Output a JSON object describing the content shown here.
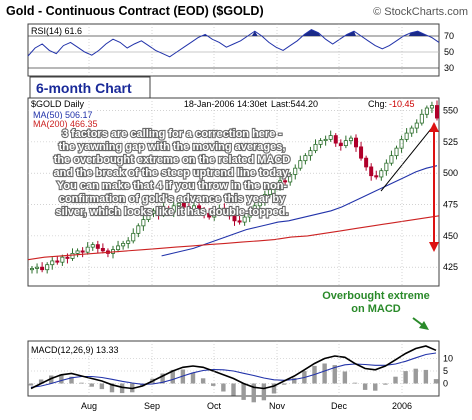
{
  "header": {
    "title": "Gold - Continuous Contract (EOD) ($GOLD)",
    "watermark": "© StockCharts.com"
  },
  "colors": {
    "panel_bg": "#ffffff",
    "frame": "#404040",
    "grid": "#b8b8b8",
    "up_candle": "#2b6e2b",
    "down_candle": "#b0002a",
    "ma50": "#2233aa",
    "ma200": "#cc2222",
    "annotation_text": "#ffffff",
    "annotation_callout": "#2a8a2a",
    "arrow": "#dd1111",
    "macd_line": "#000000",
    "signal_line": "#2233aa",
    "histogram": "#9a9a9a"
  },
  "rsi_panel": {
    "label": "RSI(14) 61.6",
    "levels": [
      "70",
      "50",
      "30"
    ]
  },
  "chart_title_box": "6-month Chart",
  "price_panel": {
    "symbol_label": "$GOLD Daily",
    "date_label": "18-Jan-2006 14:30et",
    "last_label": "Last:544.20",
    "chg_label": "Chg:",
    "chg_value": "-10.45",
    "ma50_label": "MA(50) 506.17",
    "ma200_label": "MA(200) 466.35",
    "y_ticks": [
      "550",
      "525",
      "500",
      "475",
      "450",
      "425"
    ],
    "annotation_lines": [
      "3 factors are calling for a correction here -",
      "the yawning gap with the moving averages,",
      "the overbought extreme on the related MACD",
      "and the break of the steep uptrend line today.",
      "You can make that 4 if you throw in the non-",
      "confirmation of gold's advance this year by",
      "silver, which looks like it has double-topped."
    ]
  },
  "macd_panel": {
    "label": "MACD(12,26,9) 13.33",
    "callout_lines": [
      "Overbought extreme",
      "on MACD"
    ],
    "y_ticks": [
      "10",
      "5",
      "0"
    ]
  },
  "x_axis": {
    "labels": [
      "Aug",
      "Sep",
      "Oct",
      "Nov",
      "Dec",
      "2006"
    ]
  },
  "chart_data": [
    {
      "type": "line",
      "panel": "RSI(14)",
      "series": [
        {
          "name": "RSI(14)",
          "values": [
            45,
            55,
            60,
            52,
            48,
            58,
            62,
            56,
            50,
            46,
            52,
            60,
            66,
            62,
            55,
            60,
            64,
            58,
            52,
            48,
            44,
            50,
            56,
            62,
            68,
            72,
            66,
            62,
            56,
            60,
            64,
            70,
            76,
            70,
            62,
            56,
            52,
            58,
            64,
            72,
            78,
            74,
            66,
            60,
            66,
            72,
            76,
            70,
            64,
            58,
            54,
            58,
            64,
            70,
            74,
            76,
            72,
            68,
            62
          ]
        }
      ],
      "ylim": [
        20,
        85
      ]
    },
    {
      "type": "candlestick",
      "panel": "Price",
      "start": "2005-07-18",
      "end": "2006-01-18",
      "ylim": [
        410,
        560
      ],
      "series": [
        {
          "name": "$GOLD Daily",
          "values": [
            424,
            425,
            423,
            427,
            430,
            429,
            433,
            432,
            436,
            438,
            437,
            441,
            443,
            440,
            438,
            436,
            439,
            442,
            444,
            446,
            452,
            458,
            463,
            468,
            470,
            467,
            472,
            469,
            474,
            476,
            473,
            471,
            474,
            470,
            468,
            465,
            470,
            472,
            469,
            466,
            462,
            461,
            465,
            470,
            474,
            478,
            483,
            487,
            490,
            494,
            493,
            499,
            504,
            510,
            514,
            518,
            523,
            526,
            527,
            530,
            524,
            522,
            526,
            528,
            521,
            512,
            505,
            498,
            497,
            502,
            508,
            514,
            520,
            527,
            532,
            536,
            540,
            547,
            552,
            554,
            544
          ]
        },
        {
          "name": "MA(50)",
          "values": [
            434,
            436,
            438,
            440,
            443,
            446,
            449,
            452,
            455,
            457,
            459,
            461,
            462,
            464,
            466,
            468,
            470,
            473,
            477,
            481,
            485,
            489,
            493,
            497,
            501,
            504,
            506
          ]
        },
        {
          "name": "MA(200)",
          "values": [
            431,
            433,
            434,
            435,
            436,
            437,
            438,
            439,
            440,
            441,
            442,
            443,
            444,
            445,
            446,
            447,
            449,
            450,
            452,
            454,
            456,
            458,
            460,
            462,
            464,
            466
          ]
        }
      ]
    },
    {
      "type": "line",
      "panel": "MACD(12,26,9)",
      "series": [
        {
          "name": "MACD(12,26,9)",
          "values": [
            -2,
            0,
            2,
            3.5,
            4,
            3,
            2,
            1,
            -0.5,
            -1.5,
            -2,
            -1,
            1,
            3,
            5,
            6.5,
            7,
            6.5,
            5,
            3.5,
            2,
            0,
            -1.5,
            -2,
            -1,
            1,
            3,
            5.5,
            8,
            10,
            11,
            10.5,
            8,
            6,
            5.5,
            7,
            9.5,
            12,
            14,
            15,
            13.3
          ]
        },
        {
          "name": "Signal",
          "values": [
            -1.5,
            -1,
            0,
            1.2,
            2.3,
            2.8,
            2.8,
            2.4,
            1.7,
            0.9,
            0.2,
            -0.3,
            -0.2,
            0.5,
            1.6,
            3,
            4.3,
            5.2,
            5.6,
            5.5,
            5,
            4.1,
            3.2,
            2.2,
            1.5,
            1.3,
            1.6,
            2.4,
            3.6,
            5,
            6.4,
            7.5,
            7.8,
            7.6,
            7.3,
            7.3,
            7.8,
            8.9,
            10.3,
            11.6,
            12.2
          ]
        }
      ],
      "ylim": [
        -5,
        17
      ]
    }
  ]
}
